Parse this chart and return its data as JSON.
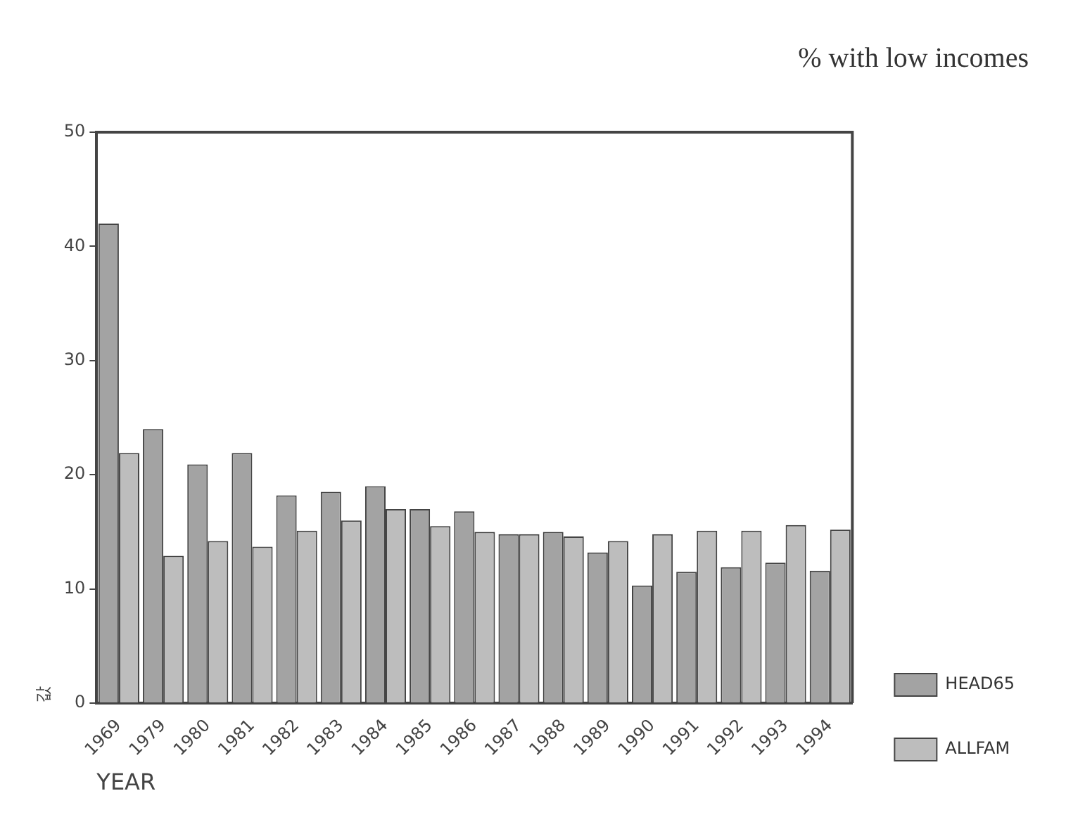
{
  "chart_data": {
    "type": "bar",
    "title": "% with low incomes",
    "xlabel": "YEAR",
    "ylabel": "값",
    "categories": [
      "1969",
      "1979",
      "1980",
      "1981",
      "1982",
      "1983",
      "1984",
      "1985",
      "1986",
      "1987",
      "1988",
      "1989",
      "1990",
      "1991",
      "1992",
      "1993",
      "1994"
    ],
    "series": [
      {
        "name": "HEAD65",
        "color": "#a3a3a3",
        "values": [
          42,
          24,
          20.9,
          21.9,
          18.2,
          18.5,
          19,
          17,
          16.8,
          14.8,
          15,
          13.2,
          10.3,
          11.5,
          11.9,
          12.3,
          11.6
        ]
      },
      {
        "name": "ALLFAM",
        "color": "#bdbdbd",
        "values": [
          21.9,
          12.9,
          14.2,
          13.7,
          15.1,
          16,
          17,
          15.5,
          15,
          14.8,
          14.6,
          14.2,
          14.8,
          15.1,
          15.1,
          15.6,
          15.2
        ]
      }
    ],
    "ylim": [
      0,
      50
    ],
    "yticks": [
      0,
      10,
      20,
      30,
      40,
      50
    ],
    "grid": false,
    "legend": "bottom right"
  }
}
